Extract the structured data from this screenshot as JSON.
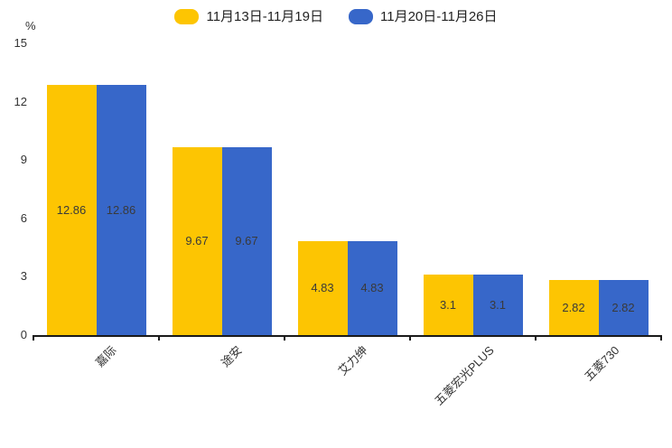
{
  "chart_data": {
    "type": "bar",
    "title": "",
    "categories": [
      "嘉际",
      "途安",
      "艾力绅",
      "五菱宏光PLUS",
      "五菱730"
    ],
    "series": [
      {
        "name": "11月13日-11月19日",
        "color": "#FDC502",
        "values": [
          12.86,
          9.67,
          4.83,
          3.1,
          2.82
        ]
      },
      {
        "name": "11月20日-11月26日",
        "color": "#3767C9",
        "values": [
          12.86,
          9.67,
          4.83,
          3.1,
          2.82
        ]
      }
    ],
    "value_labels": [
      [
        "12.86",
        "9.67",
        "4.83",
        "3.1",
        "2.82"
      ],
      [
        "12.86",
        "9.67",
        "4.83",
        "3.1",
        "2.82"
      ]
    ],
    "xlabel": "",
    "ylabel": "%",
    "ylim": [
      0,
      15
    ],
    "yticks": [
      0,
      3,
      6,
      9,
      12,
      15
    ],
    "grid": false,
    "legend_position": "top-center",
    "bar_value_labels_inside": true,
    "x_labels_rotated_degrees": 45
  }
}
